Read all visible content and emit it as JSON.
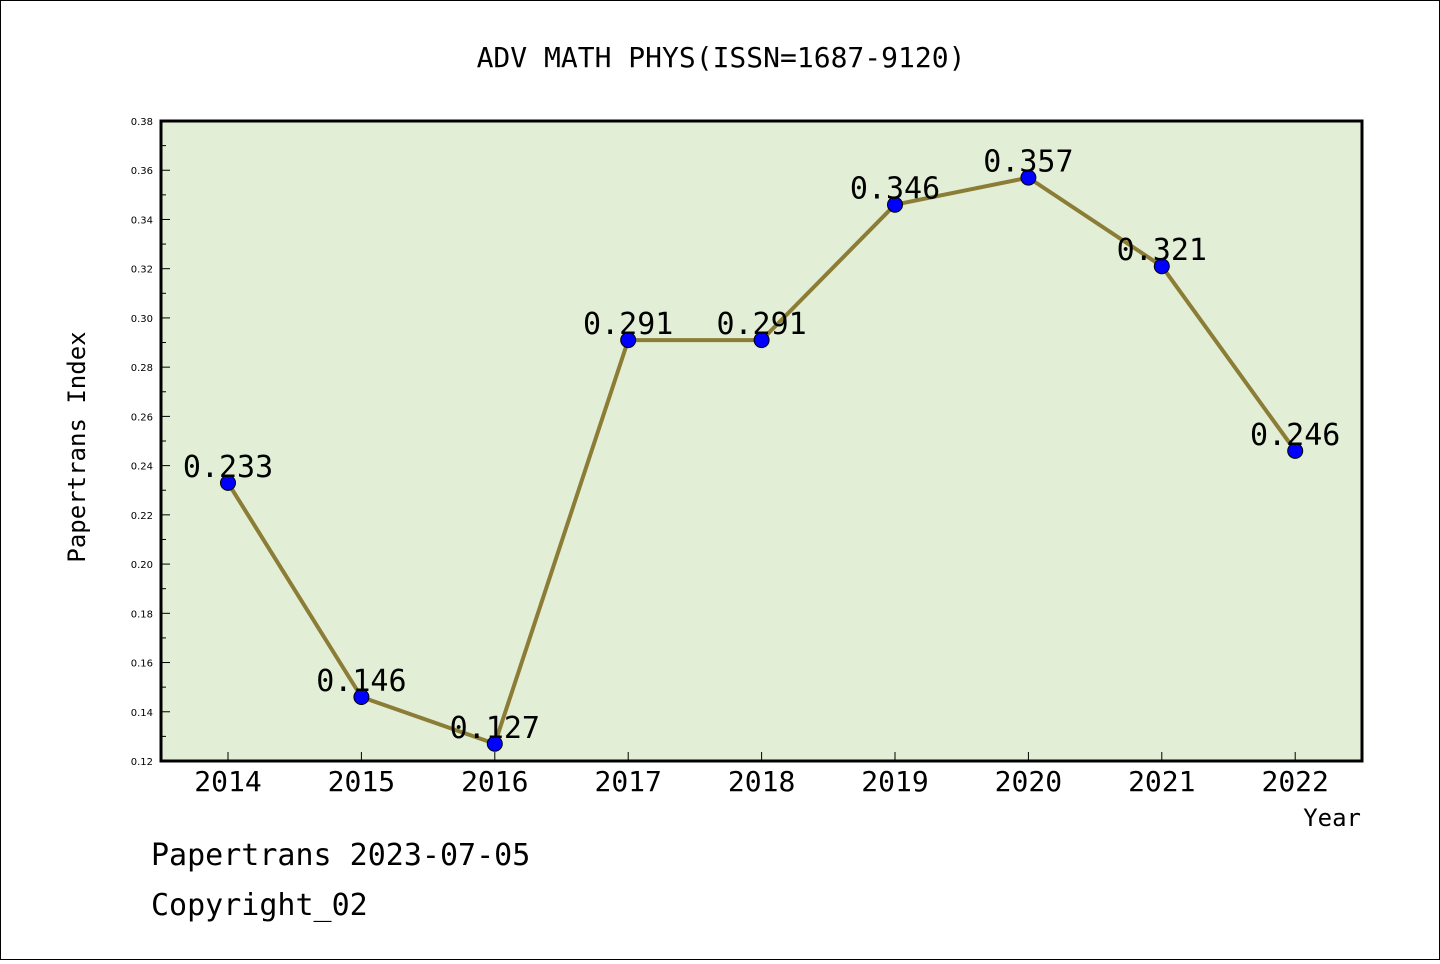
{
  "chart_data": {
    "type": "line",
    "title": "ADV MATH PHYS(ISSN=1687-9120)",
    "xlabel": "Year",
    "ylabel": "Papertrans Index",
    "categories": [
      "2014",
      "2015",
      "2016",
      "2017",
      "2018",
      "2019",
      "2020",
      "2021",
      "2022"
    ],
    "values": [
      0.233,
      0.146,
      0.127,
      0.291,
      0.291,
      0.346,
      0.357,
      0.321,
      0.246
    ],
    "data_labels": [
      "0.233",
      "0.146",
      "0.127",
      "0.291",
      "0.291",
      "0.346",
      "0.357",
      "0.321",
      "0.246"
    ],
    "ylim": [
      0.12,
      0.38
    ],
    "yticks": [
      "0.12",
      "0.14",
      "0.16",
      "0.18",
      "0.20",
      "0.22",
      "0.24",
      "0.26",
      "0.28",
      "0.30",
      "0.32",
      "0.34",
      "0.36",
      "0.38"
    ],
    "grid": false,
    "colors": {
      "plot_background": "#e2efd6",
      "line": "#8b7d35",
      "marker": "#0000ff"
    }
  },
  "footer": {
    "line1": "Papertrans 2023-07-05",
    "line2": "Copyright_02"
  }
}
